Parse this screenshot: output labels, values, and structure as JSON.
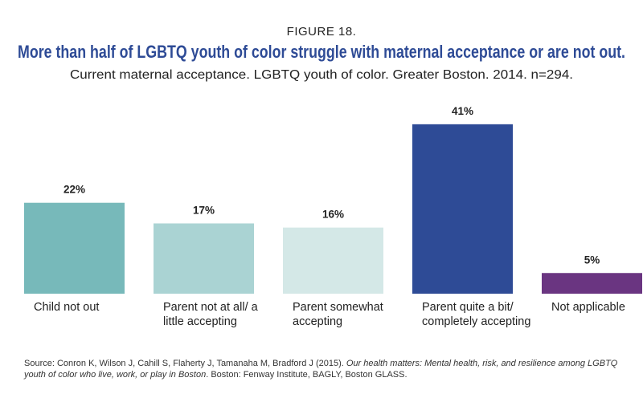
{
  "chart_data": {
    "type": "bar",
    "figure_label": "FIGURE 18.",
    "title": "More than half of LGBTQ youth of color struggle with maternal acceptance or are not out.",
    "subtitle": "Current maternal acceptance. LGBTQ youth of color. Greater Boston. 2014. n=294.",
    "categories": [
      "Child not out",
      "Parent not at all/ a little accepting",
      "Parent somewhat accepting",
      "Parent quite a bit/ completely accepting",
      "Not applicable"
    ],
    "values": [
      22,
      17,
      16,
      41,
      5
    ],
    "value_labels": [
      "22%",
      "17%",
      "16%",
      "41%",
      "5%"
    ],
    "colors": [
      "#77b9ba",
      "#aad3d3",
      "#d4e8e7",
      "#2e4b96",
      "#6a3581"
    ],
    "source": [
      "Source: Conron K, Wilson J, Cahill S, Flaherty J, Tamanaha M, Bradford J (2015). ",
      "Our health matters: Mental health, risk, and resilience among LGBTQ youth of color who live, work, or play in Boston",
      ". Boston: Fenway Institute, BAGLY, Boston GLASS."
    ]
  }
}
